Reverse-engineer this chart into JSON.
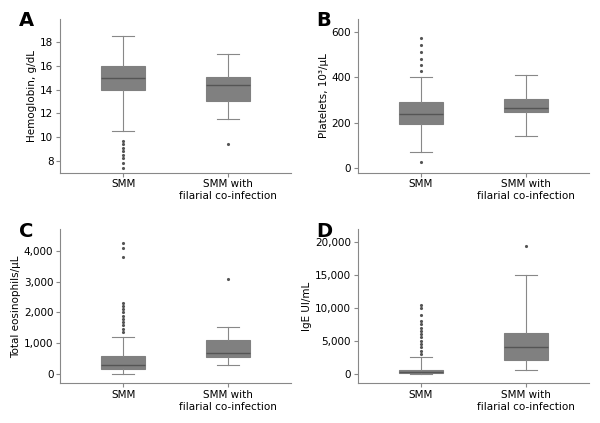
{
  "panels": {
    "A": {
      "label": "A",
      "ylabel": "Hemoglobin, g/dL",
      "ylim": [
        7,
        20
      ],
      "yticks": [
        8,
        10,
        12,
        14,
        16,
        18
      ],
      "yticklabels": [
        "8",
        "10",
        "12",
        "14",
        "16",
        "18"
      ],
      "boxes": [
        {
          "label": "SMM",
          "median": 15.0,
          "q1": 14.0,
          "q3": 16.0,
          "whislo": 10.5,
          "whishi": 18.5,
          "fliers": [
            9.7,
            9.4,
            9.1,
            8.8,
            8.5,
            8.2,
            7.8,
            7.4
          ]
        },
        {
          "label": "SMM with\nfilarial co-infection",
          "median": 14.4,
          "q1": 13.0,
          "q3": 15.1,
          "whislo": 11.5,
          "whishi": 17.0,
          "fliers": [
            9.4
          ]
        }
      ]
    },
    "B": {
      "label": "B",
      "ylabel": "Platelets, 10³/µL",
      "ylim": [
        -20,
        660
      ],
      "yticks": [
        0,
        200,
        400,
        600
      ],
      "yticklabels": [
        "0",
        "200",
        "400",
        "600"
      ],
      "boxes": [
        {
          "label": "SMM",
          "median": 238,
          "q1": 195,
          "q3": 290,
          "whislo": 70,
          "whishi": 400,
          "fliers": [
            430,
            455,
            480,
            510,
            545,
            575,
            25
          ]
        },
        {
          "label": "SMM with\nfilarial co-infection",
          "median": 265,
          "q1": 248,
          "q3": 305,
          "whislo": 140,
          "whishi": 410,
          "fliers": []
        }
      ]
    },
    "C": {
      "label": "C",
      "ylabel": "Total eosinophils/µL",
      "ylim": [
        -300,
        4700
      ],
      "yticks": [
        0,
        1000,
        2000,
        3000,
        4000
      ],
      "yticklabels": [
        "0",
        "1,000",
        "2,000",
        "3,000",
        "4,000"
      ],
      "boxes": [
        {
          "label": "SMM",
          "median": 300,
          "q1": 150,
          "q3": 590,
          "whislo": 0,
          "whishi": 1220,
          "fliers": [
            1380,
            1480,
            1580,
            1680,
            1780,
            1900,
            2000,
            2100,
            2200,
            2320,
            3800,
            4100,
            4250
          ]
        },
        {
          "label": "SMM with\nfilarial co-infection",
          "median": 700,
          "q1": 570,
          "q3": 1100,
          "whislo": 280,
          "whishi": 1530,
          "fliers": [
            3100
          ]
        }
      ]
    },
    "D": {
      "label": "D",
      "ylabel": "IgE UI/mL",
      "ylim": [
        -1500,
        22000
      ],
      "yticks": [
        0,
        5000,
        10000,
        15000,
        20000
      ],
      "yticklabels": [
        "0",
        "5,000",
        "10,000",
        "15,000",
        "20,000"
      ],
      "boxes": [
        {
          "label": "SMM",
          "median": 200,
          "q1": 50,
          "q3": 600,
          "whislo": 0,
          "whishi": 2500,
          "fliers": [
            3000,
            3500,
            4000,
            4500,
            5000,
            5500,
            6000,
            6500,
            7000,
            7500,
            8000,
            9000,
            10000,
            10500
          ]
        },
        {
          "label": "SMM with\nfilarial co-infection",
          "median": 4000,
          "q1": 2000,
          "q3": 6200,
          "whislo": 500,
          "whishi": 15000,
          "fliers": [
            19500
          ]
        }
      ]
    }
  },
  "box_color": "#808080",
  "box_facecolor": "#999999",
  "whisker_color": "#888888",
  "median_color": "#555555",
  "flier_color": "#555555",
  "background_color": "#ffffff",
  "tick_fontsize": 7.5,
  "ylabel_fontsize": 7.5,
  "xlabel_fontsize": 7.5,
  "panel_label_fontsize": 14
}
